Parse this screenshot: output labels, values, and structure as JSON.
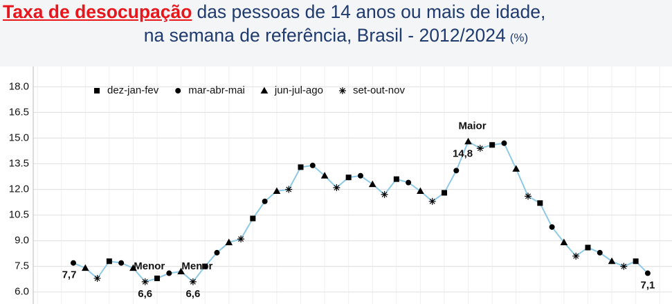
{
  "chart_data": {
    "type": "line",
    "title": "Taxa de desocupação",
    "subtitle_lines": [
      "das pessoas de 14 anos ou mais de idade,",
      "na semana de referência, Brasil - 2012/2024"
    ],
    "unit": "(%)",
    "categories": [
      null,
      null,
      null,
      null,
      null,
      null,
      null,
      null,
      null,
      null,
      null,
      null,
      null,
      null,
      null,
      null,
      null,
      null,
      null,
      null,
      null,
      null,
      null,
      null,
      null,
      null,
      null,
      null,
      null,
      null,
      null,
      null,
      null,
      null,
      null,
      null,
      null,
      null,
      null,
      null,
      null,
      null,
      null,
      null,
      null,
      null,
      null,
      null,
      null
    ],
    "line_color": "#8ec9e6",
    "marker_color": "#000000",
    "ylim": [
      5.3,
      18.7
    ],
    "yticks": [
      {
        "value": 6,
        "label": "6.0"
      },
      7.5,
      {
        "value": 9,
        "label": "9.0"
      },
      10.5,
      {
        "value": 12,
        "label": "12.0"
      },
      13.5,
      {
        "value": 15,
        "label": "15.0"
      },
      16.5,
      {
        "value": 18,
        "label": "18.0"
      }
    ],
    "grid": true,
    "legend": "top-left",
    "series": [
      {
        "name": "dez-jan-fev",
        "marker": "square",
        "values": [
          null,
          null,
          null,
          7.8,
          null,
          null,
          null,
          6.8,
          null,
          null,
          null,
          7.5,
          null,
          null,
          null,
          10.3,
          null,
          null,
          null,
          13.3,
          null,
          null,
          null,
          12.7,
          null,
          null,
          null,
          12.6,
          null,
          null,
          null,
          11.8,
          null,
          null,
          null,
          14.6,
          null,
          null,
          null,
          11.2,
          null,
          null,
          null,
          8.6,
          null,
          null,
          null,
          7.8,
          null
        ]
      },
      {
        "name": "mar-abr-mai",
        "marker": "circle",
        "values": [
          7.7,
          null,
          null,
          null,
          7.7,
          null,
          null,
          null,
          7.1,
          null,
          null,
          null,
          8.3,
          null,
          null,
          null,
          11.3,
          null,
          null,
          null,
          13.4,
          null,
          null,
          null,
          12.8,
          null,
          null,
          null,
          12.4,
          null,
          null,
          null,
          13.1,
          null,
          null,
          null,
          14.7,
          null,
          null,
          null,
          9.8,
          null,
          null,
          null,
          8.3,
          null,
          null,
          null,
          7.1
        ],
        "value_labels": [
          "7,7",
          null,
          null,
          null,
          null,
          null,
          null,
          null,
          null,
          null,
          null,
          null,
          null,
          null,
          null,
          null,
          null,
          null,
          null,
          null,
          null,
          null,
          null,
          null,
          null,
          null,
          null,
          null,
          null,
          null,
          null,
          null,
          null,
          null,
          null,
          null,
          null,
          null,
          null,
          null,
          null,
          null,
          null,
          null,
          null,
          null,
          null,
          null,
          "7,1"
        ]
      },
      {
        "name": "jun-jul-ago",
        "marker": "triangle",
        "values": [
          null,
          7.4,
          null,
          null,
          null,
          7.4,
          null,
          null,
          null,
          7.2,
          null,
          null,
          null,
          8.9,
          null,
          null,
          null,
          11.9,
          null,
          null,
          null,
          12.8,
          null,
          null,
          null,
          12.3,
          null,
          null,
          null,
          11.9,
          null,
          null,
          null,
          14.8,
          null,
          null,
          null,
          13.2,
          null,
          null,
          null,
          8.9,
          null,
          null,
          null,
          7.8,
          null,
          null,
          null
        ],
        "value_labels": [
          null,
          null,
          null,
          null,
          null,
          null,
          null,
          null,
          null,
          null,
          null,
          null,
          null,
          null,
          null,
          null,
          null,
          null,
          null,
          null,
          null,
          null,
          null,
          null,
          null,
          null,
          null,
          null,
          null,
          null,
          null,
          null,
          null,
          "14,8",
          null,
          null,
          null,
          null,
          null,
          null,
          null,
          null,
          null,
          null,
          null,
          null,
          null,
          null,
          null
        ]
      },
      {
        "name": "set-out-nov",
        "marker": "star",
        "values": [
          null,
          null,
          6.8,
          null,
          null,
          null,
          6.6,
          null,
          null,
          null,
          6.6,
          null,
          null,
          null,
          9.1,
          null,
          null,
          null,
          12.0,
          null,
          null,
          null,
          12.1,
          null,
          null,
          null,
          11.7,
          null,
          null,
          null,
          11.3,
          null,
          null,
          null,
          14.4,
          null,
          null,
          null,
          11.6,
          null,
          null,
          null,
          8.1,
          null,
          null,
          null,
          7.5,
          null,
          null
        ],
        "value_labels": [
          null,
          null,
          null,
          null,
          null,
          null,
          "6,6",
          null,
          null,
          null,
          "6,6",
          null,
          null,
          null,
          null,
          null,
          null,
          null,
          null,
          null,
          null,
          null,
          null,
          null,
          null,
          null,
          null,
          null,
          null,
          null,
          null,
          null,
          null,
          null,
          null,
          null,
          null,
          null,
          null,
          null,
          null,
          null,
          null,
          null,
          null,
          null,
          null,
          null,
          null
        ]
      }
    ],
    "annotations": [
      {
        "text": "Menor",
        "x": 6
      },
      {
        "text": "Menor",
        "x": 10
      },
      {
        "text": "Maior",
        "x": 33
      }
    ]
  }
}
